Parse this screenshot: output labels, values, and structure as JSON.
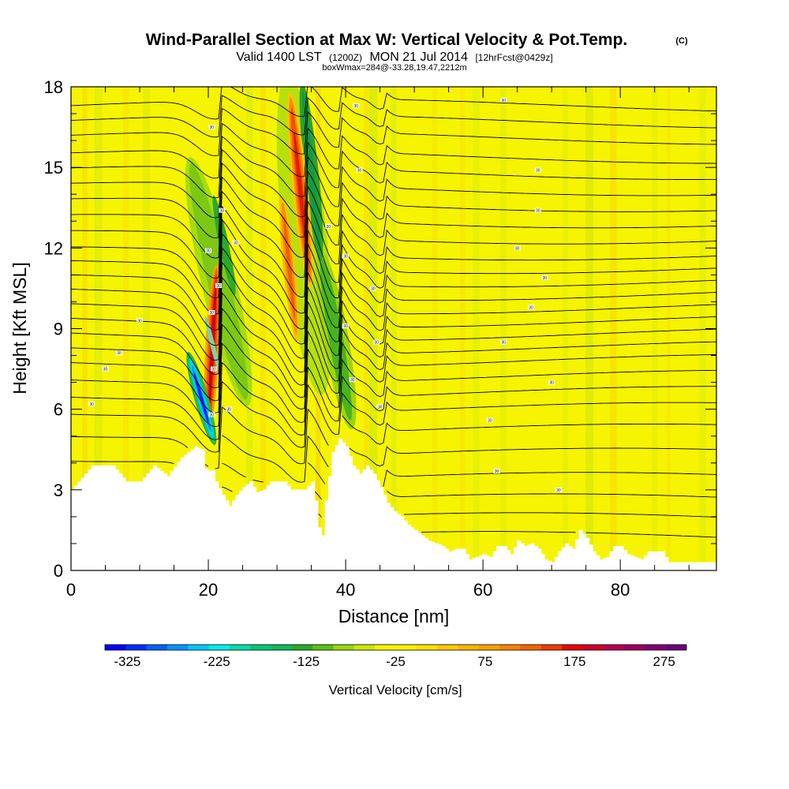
{
  "title": {
    "main": "Wind-Parallel Section at Max W: Vertical Velocity & Pot.Temp.",
    "copyright": "(C)",
    "valid_prefix": "Valid 1400 LST",
    "valid_utc": "(1200Z)",
    "valid_date": "MON 21 Jul 2014",
    "forecast": "[12hrFcst@0429z]",
    "box_info": "boxWmax=284@-33.28,19.47,2212m"
  },
  "chart_data": {
    "type": "heatmap",
    "xlabel": "Distance [nm]",
    "ylabel": "Height [Kft MSL]",
    "xlim": [
      0,
      94
    ],
    "ylim": [
      0,
      18
    ],
    "x_ticks": [
      0,
      20,
      40,
      60,
      80
    ],
    "y_ticks": [
      0,
      3,
      6,
      9,
      12,
      15,
      18
    ],
    "terrain_kft": [
      [
        0,
        3.0
      ],
      [
        1,
        3.3
      ],
      [
        3,
        3.9
      ],
      [
        6,
        3.9
      ],
      [
        7,
        3.6
      ],
      [
        8,
        3.3
      ],
      [
        10,
        3.3
      ],
      [
        12,
        3.9
      ],
      [
        14,
        3.5
      ],
      [
        16,
        4.2
      ],
      [
        18,
        4.6
      ],
      [
        19,
        4.5
      ],
      [
        19.7,
        3.5
      ],
      [
        20.3,
        3.9
      ],
      [
        21,
        3.3
      ],
      [
        22,
        2.8
      ],
      [
        23,
        2.4
      ],
      [
        24,
        2.8
      ],
      [
        25,
        3.1
      ],
      [
        26,
        3.3
      ],
      [
        27,
        2.9
      ],
      [
        28,
        3.0
      ],
      [
        29,
        3.3
      ],
      [
        30,
        3.3
      ],
      [
        31,
        3.3
      ],
      [
        32,
        3.0
      ],
      [
        33,
        3.0
      ],
      [
        34,
        3.0
      ],
      [
        35,
        3.3
      ],
      [
        35.5,
        2.6
      ],
      [
        36,
        1.6
      ],
      [
        36.5,
        1.3
      ],
      [
        37,
        2.6
      ],
      [
        38,
        4.4
      ],
      [
        39,
        4.9
      ],
      [
        40,
        4.6
      ],
      [
        41,
        3.9
      ],
      [
        42,
        3.6
      ],
      [
        43,
        3.9
      ],
      [
        44,
        3.6
      ],
      [
        45,
        3.1
      ],
      [
        46,
        2.5
      ],
      [
        47,
        2.2
      ],
      [
        48,
        2.0
      ],
      [
        49,
        1.7
      ],
      [
        50,
        1.5
      ],
      [
        51,
        1.3
      ],
      [
        52,
        1.1
      ],
      [
        53,
        1.0
      ],
      [
        54,
        0.9
      ],
      [
        55,
        0.7
      ],
      [
        56,
        0.8
      ],
      [
        57,
        0.8
      ],
      [
        58,
        0.4
      ],
      [
        59,
        0.5
      ],
      [
        60,
        0.6
      ],
      [
        61,
        0.5
      ],
      [
        62,
        0.9
      ],
      [
        63,
        0.9
      ],
      [
        64,
        0.6
      ],
      [
        65,
        1.1
      ],
      [
        66,
        0.9
      ],
      [
        67,
        1.0
      ],
      [
        68,
        0.8
      ],
      [
        69,
        0.4
      ],
      [
        70,
        0.3
      ],
      [
        71,
        0.7
      ],
      [
        72,
        1.0
      ],
      [
        73,
        0.8
      ],
      [
        74,
        1.5
      ],
      [
        75,
        1.2
      ],
      [
        76,
        0.7
      ],
      [
        77,
        0.4
      ],
      [
        78,
        0.5
      ],
      [
        79,
        0.9
      ],
      [
        80,
        0.9
      ],
      [
        81,
        0.6
      ],
      [
        82,
        0.5
      ],
      [
        83,
        0.4
      ],
      [
        84,
        0.7
      ],
      [
        85,
        0.7
      ],
      [
        86,
        0.7
      ],
      [
        87,
        0.3
      ],
      [
        90,
        0.3
      ],
      [
        94,
        0.3
      ]
    ],
    "updraft_cores": [
      {
        "x": 20.6,
        "y_top": 11.4,
        "y_bottom": 5.2,
        "w_cm_s": 284
      },
      {
        "x": 33.4,
        "y_top": 17.8,
        "y_bottom": 10.5,
        "w_cm_s": 175
      },
      {
        "x": 31.8,
        "y_top": 14.0,
        "y_bottom": 8.5,
        "w_cm_s": 100
      }
    ],
    "downdraft_cores": [
      {
        "x": 19.0,
        "y_top": 8.2,
        "y_bottom": 4.6,
        "w_cm_s": -325
      },
      {
        "x": 34.5,
        "y_top": 17.8,
        "y_bottom": 11.5,
        "w_cm_s": -150
      },
      {
        "x": 38.5,
        "y_top": 10.5,
        "y_bottom": 5.0,
        "w_cm_s": -100
      },
      {
        "x": 22.0,
        "y_top": 14.5,
        "y_bottom": 10.0,
        "w_cm_s": -100
      }
    ],
    "isentrope_levels_kft": [
      17.3,
      16.7,
      16.1,
      15.4,
      14.8,
      14.2,
      13.6,
      13.0,
      12.4,
      11.8,
      11.3,
      10.8,
      10.3,
      9.8,
      9.3,
      8.8,
      8.3,
      7.8,
      7.2,
      6.6,
      6.0,
      5.2,
      4.3,
      3.4,
      2.6,
      1.9,
      1.2
    ],
    "isentrope_labels": [
      "30",
      "30",
      "30",
      "30",
      "30",
      "30",
      "30",
      "30",
      "30",
      "30",
      "30",
      "30",
      "30",
      "30"
    ],
    "colorbar": {
      "label": "Vertical Velocity [cm/s]",
      "tick_labels": [
        "-325",
        "-225",
        "-125",
        "-25",
        "75",
        "175",
        "275"
      ],
      "colors": [
        "#0000ff",
        "#0030ff",
        "#0062ff",
        "#0096ff",
        "#00c8ff",
        "#00eee6",
        "#00dfa8",
        "#00c87a",
        "#12b85a",
        "#2aaa2a",
        "#5cc015",
        "#9ad80c",
        "#cbe805",
        "#f4f500",
        "#fdf100",
        "#fde000",
        "#fdcc00",
        "#fcb600",
        "#fca000",
        "#f98400",
        "#f56400",
        "#ef3a00",
        "#e40800",
        "#d0002a",
        "#b80050",
        "#9e0060",
        "#840070",
        "#6e0078"
      ]
    }
  }
}
